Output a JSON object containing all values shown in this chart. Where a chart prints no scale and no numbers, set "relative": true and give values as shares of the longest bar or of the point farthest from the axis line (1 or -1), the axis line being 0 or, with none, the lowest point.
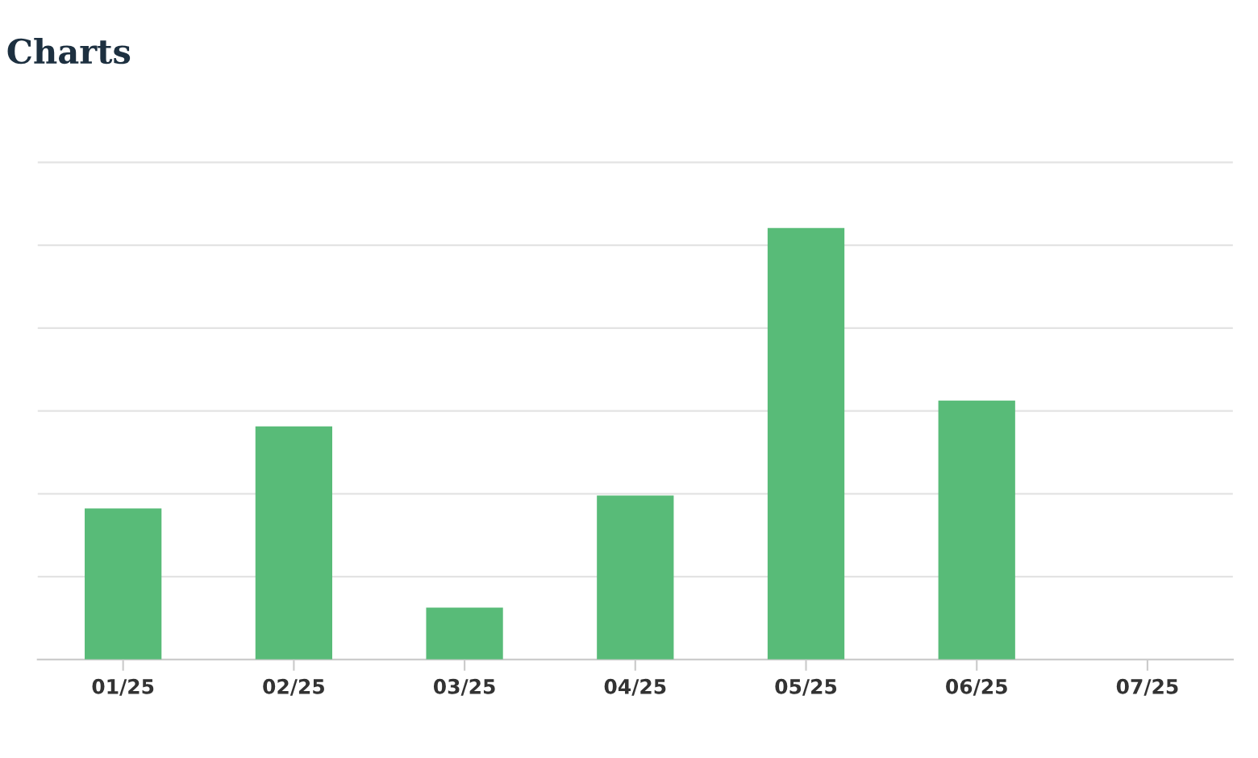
{
  "chart_data": {
    "type": "bar",
    "title": "Charts",
    "relative": true,
    "categories": [
      "01/25",
      "02/25",
      "03/25",
      "04/25",
      "05/25",
      "06/25",
      "07/25"
    ],
    "values": [
      0.35,
      0.54,
      0.12,
      0.38,
      1,
      0.6,
      0
    ],
    "color": "#58bb78",
    "grid": "y",
    "tick_labels": "x"
  }
}
